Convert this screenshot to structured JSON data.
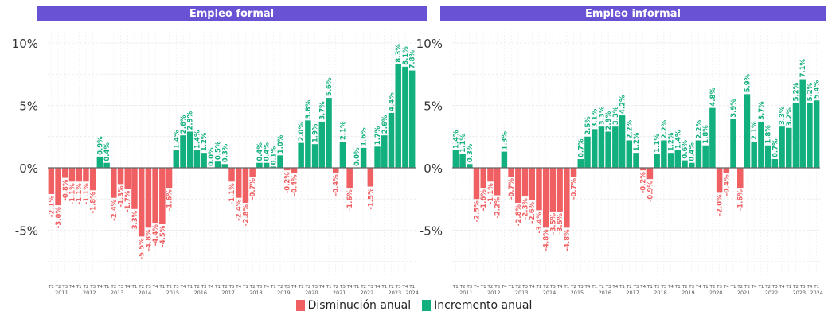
{
  "colors": {
    "decrease": "#f05f62",
    "increase": "#13b07f",
    "header": "#6a52d4"
  },
  "legend": [
    {
      "label": "Disminución anual",
      "color": "#f05f62"
    },
    {
      "label": "Incremento anual",
      "color": "#13b07f"
    }
  ],
  "chart_data": [
    {
      "type": "bar",
      "title": "Empleo formal",
      "ylim": [
        -9.5,
        10.7
      ],
      "yticks": [
        -5,
        0,
        5,
        10
      ],
      "yticklabels": [
        "-5%",
        "0%",
        "5%",
        "10%"
      ],
      "grid": true,
      "quarter_labels": [
        "T1",
        "T2",
        "T3",
        "T4"
      ],
      "years": [
        "2011",
        "2012",
        "2013",
        "2014",
        "2015",
        "2016",
        "2017",
        "2018",
        "2019",
        "2020",
        "2021",
        "2022",
        "2023",
        "2024"
      ],
      "values": [
        -2.1,
        -3.0,
        -0.8,
        -1.1,
        -1.1,
        -1.1,
        -1.8,
        0.9,
        0.4,
        -2.4,
        -1.3,
        -1.7,
        -3.3,
        -5.5,
        -4.8,
        -4.4,
        -4.5,
        -1.6,
        1.4,
        2.6,
        2.9,
        1.4,
        1.2,
        0.0,
        0.5,
        0.3,
        -1.1,
        -2.4,
        -2.8,
        -0.7,
        0.4,
        0.4,
        0.1,
        1.0,
        -0.2,
        -0.4,
        2.0,
        3.8,
        1.9,
        3.7,
        5.6,
        -0.4,
        2.1,
        -1.6,
        0.0,
        1.6,
        -1.5,
        1.7,
        2.6,
        4.4,
        8.3,
        8.1,
        7.8
      ],
      "labels": [
        "-2.1%",
        "-3.0%",
        "-0.8%",
        "-1.1%",
        "-1.1%",
        "-1.1%",
        "-1.8%",
        "0.9%",
        "0.4%",
        "-2.4%",
        "-1.3%",
        "-1.7%",
        "-3.3%",
        "-5.5%",
        "-4.8%",
        "-4.4%",
        "-4.5%",
        "-1.6%",
        "1.4%",
        "2.6%",
        "2.9%",
        "1.4%",
        "1.2%",
        "0.0%",
        "0.5%",
        "0.3%",
        "-1.1%",
        "-2.4%",
        "-2.8%",
        "-0.7%",
        "0.4%",
        "0.4%",
        "0.1%",
        "1.0%",
        "-0.2%",
        "-0.4%",
        "2.0%",
        "3.8%",
        "1.9%",
        "3.7%",
        "5.6%",
        "-0.4%",
        "2.1%",
        "-1.6%",
        "0.0%",
        "1.6%",
        "-1.5%",
        "1.7%",
        "2.6%",
        "4.4%",
        "8.3%",
        "8.1%",
        "7.8%"
      ]
    },
    {
      "type": "bar",
      "title": "Empleo informal",
      "ylim": [
        -9.5,
        10.7
      ],
      "yticks": [
        -5,
        0,
        5,
        10
      ],
      "yticklabels": [
        "-5%",
        "0%",
        "5%",
        "10%"
      ],
      "grid": true,
      "quarter_labels": [
        "T1",
        "T2",
        "T3",
        "T4"
      ],
      "years": [
        "2011",
        "2012",
        "2013",
        "2014",
        "2015",
        "2016",
        "2017",
        "2018",
        "2019",
        "2020",
        "2021",
        "2022",
        "2023",
        "2024"
      ],
      "values": [
        1.4,
        1.1,
        0.3,
        -2.5,
        -1.6,
        -1.1,
        -2.2,
        1.3,
        -0.7,
        -2.8,
        -2.3,
        -2.6,
        -3.4,
        -4.8,
        -3.5,
        -3.5,
        -4.8,
        -0.7,
        0.7,
        2.5,
        3.1,
        3.3,
        2.9,
        3.3,
        4.2,
        2.2,
        1.2,
        -0.2,
        -0.9,
        1.1,
        2.2,
        1.2,
        1.4,
        0.6,
        0.4,
        2.2,
        1.8,
        4.8,
        -2.0,
        -0.4,
        3.9,
        -1.6,
        5.9,
        2.1,
        3.7,
        1.8,
        0.7,
        3.3,
        3.2,
        5.2,
        7.1,
        5.2,
        5.4
      ],
      "labels": [
        "1.4%",
        "1.1%",
        "0.3%",
        "-2.5%",
        "-1.6%",
        "-1.1%",
        "-2.2%",
        "1.3%",
        "-0.7%",
        "-2.8%",
        "-2.3%",
        "-2.6%",
        "-3.4%",
        "-4.8%",
        "-3.5%",
        "-3.5%",
        "-4.8%",
        "-0.7%",
        "0.7%",
        "2.5%",
        "3.1%",
        "3.3%",
        "2.9%",
        "3.3%",
        "4.2%",
        "2.2%",
        "1.2%",
        "-0.2%",
        "-0.9%",
        "1.1%",
        "2.2%",
        "1.2%",
        "1.4%",
        "0.6%",
        "0.4%",
        "2.2%",
        "1.8%",
        "4.8%",
        "-2.0%",
        "-0.4%",
        "3.9%",
        "-1.6%",
        "5.9%",
        "2.1%",
        "3.7%",
        "1.8%",
        "0.7%",
        "3.3%",
        "3.2%",
        "5.2%",
        "7.1%",
        "5.2%",
        "5.4%"
      ]
    }
  ]
}
